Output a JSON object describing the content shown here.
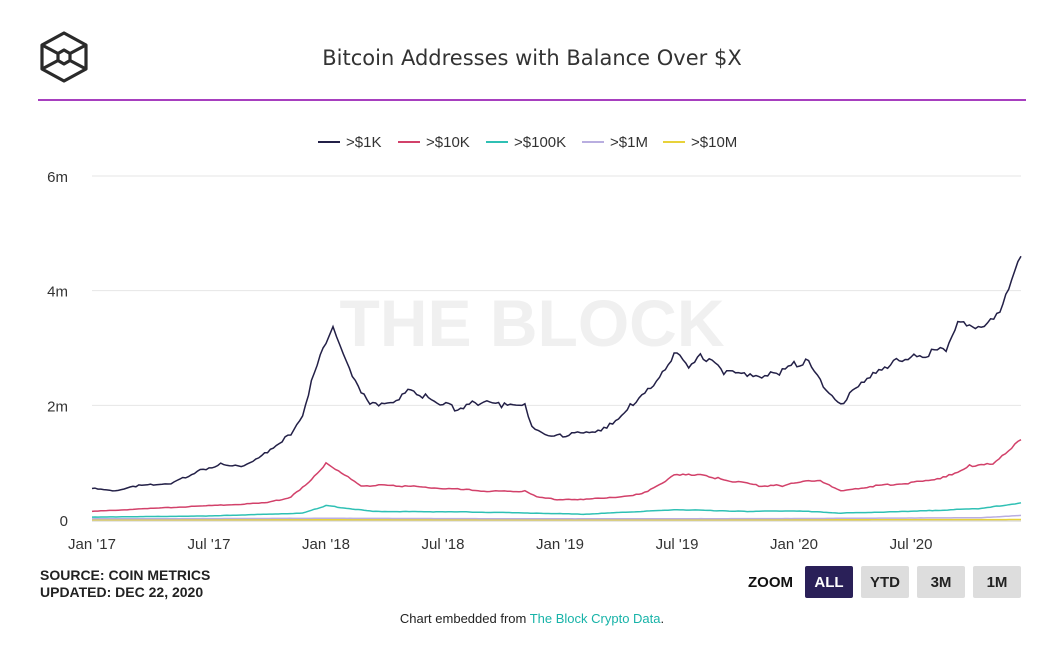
{
  "header": {
    "title": "Bitcoin Addresses with Balance Over $X",
    "logo": "The Block"
  },
  "footer": {
    "source": "SOURCE: COIN METRICS",
    "updated": "UPDATED: DEC 22, 2020",
    "credit_prefix": "Chart embedded from ",
    "credit_link": "The Block Crypto Data",
    "credit_suffix": "."
  },
  "zoom": {
    "label": "ZOOM",
    "buttons": [
      "ALL",
      "YTD",
      "3M",
      "1M"
    ],
    "active": "ALL"
  },
  "chart_data": {
    "type": "line",
    "title": "Bitcoin Addresses with Balance Over $X",
    "watermark": "THE BLOCK",
    "xlabel": "",
    "ylabel": "",
    "ylim": [
      0,
      6
    ],
    "yticks": [
      0,
      2,
      4,
      6
    ],
    "ytick_labels": [
      "0",
      "2m",
      "4m",
      "6m"
    ],
    "xlim": [
      2017.0,
      2020.97
    ],
    "xticks": [
      2017.0,
      2017.5,
      2018.0,
      2018.5,
      2019.0,
      2019.5,
      2020.0,
      2020.5
    ],
    "xtick_labels": [
      "Jan '17",
      "Jul '17",
      "Jan '18",
      "Jul '18",
      "Jan '19",
      "Jul '19",
      "Jan '20",
      "Jul '20"
    ],
    "legend_position": "top-center",
    "units": "millions of addresses",
    "series": [
      {
        "name": ">$1K",
        "color": "#232047",
        "x": [
          2017.0,
          2017.1,
          2017.2,
          2017.35,
          2017.45,
          2017.55,
          2017.65,
          2017.75,
          2017.85,
          2017.9,
          2017.95,
          2018.0,
          2018.03,
          2018.06,
          2018.1,
          2018.15,
          2018.2,
          2018.3,
          2018.35,
          2018.45,
          2018.55,
          2018.65,
          2018.75,
          2018.85,
          2018.88,
          2018.95,
          2019.05,
          2019.2,
          2019.3,
          2019.4,
          2019.5,
          2019.55,
          2019.6,
          2019.7,
          2019.8,
          2019.85,
          2019.95,
          2020.05,
          2020.1,
          2020.2,
          2020.25,
          2020.35,
          2020.45,
          2020.55,
          2020.65,
          2020.7,
          2020.8,
          2020.88,
          2020.93,
          2020.97
        ],
        "values": [
          0.55,
          0.5,
          0.6,
          0.65,
          0.85,
          0.97,
          0.95,
          1.2,
          1.5,
          1.85,
          2.6,
          3.1,
          3.3,
          3.0,
          2.6,
          2.2,
          2.0,
          2.1,
          2.3,
          2.1,
          1.95,
          2.05,
          2.0,
          1.98,
          1.6,
          1.45,
          1.5,
          1.6,
          2.0,
          2.4,
          2.95,
          2.7,
          2.9,
          2.6,
          2.5,
          2.45,
          2.6,
          2.8,
          2.5,
          2.0,
          2.3,
          2.6,
          2.8,
          2.85,
          3.0,
          3.4,
          3.3,
          3.6,
          4.1,
          4.6
        ]
      },
      {
        "name": ">$10K",
        "color": "#d2416a",
        "x": [
          2017.0,
          2017.25,
          2017.5,
          2017.75,
          2017.85,
          2017.95,
          2018.0,
          2018.08,
          2018.15,
          2018.3,
          2018.5,
          2018.7,
          2018.85,
          2018.9,
          2019.0,
          2019.2,
          2019.35,
          2019.5,
          2019.6,
          2019.7,
          2019.85,
          2019.95,
          2020.1,
          2020.15,
          2020.2,
          2020.35,
          2020.5,
          2020.65,
          2020.75,
          2020.85,
          2020.97
        ],
        "values": [
          0.15,
          0.2,
          0.25,
          0.3,
          0.4,
          0.75,
          1.0,
          0.8,
          0.6,
          0.6,
          0.55,
          0.5,
          0.5,
          0.4,
          0.35,
          0.38,
          0.45,
          0.8,
          0.8,
          0.7,
          0.6,
          0.6,
          0.7,
          0.6,
          0.5,
          0.6,
          0.65,
          0.75,
          0.95,
          1.0,
          1.4
        ]
      },
      {
        "name": ">$100K",
        "color": "#2fc0b4",
        "x": [
          2017.0,
          2017.5,
          2017.9,
          2018.0,
          2018.2,
          2018.6,
          2018.9,
          2019.1,
          2019.5,
          2019.8,
          2020.0,
          2020.2,
          2020.5,
          2020.8,
          2020.97
        ],
        "values": [
          0.05,
          0.07,
          0.12,
          0.25,
          0.15,
          0.14,
          0.12,
          0.1,
          0.18,
          0.15,
          0.16,
          0.12,
          0.15,
          0.2,
          0.3
        ]
      },
      {
        "name": ">$1M",
        "color": "#b9aee0",
        "x": [
          2017.0,
          2018.0,
          2019.0,
          2020.0,
          2020.8,
          2020.97
        ],
        "values": [
          0.02,
          0.03,
          0.02,
          0.025,
          0.04,
          0.08
        ]
      },
      {
        "name": ">$10M",
        "color": "#e8d23a",
        "x": [
          2017.0,
          2018.0,
          2019.0,
          2020.0,
          2020.97
        ],
        "values": [
          0.005,
          0.006,
          0.005,
          0.005,
          0.008
        ]
      }
    ]
  }
}
